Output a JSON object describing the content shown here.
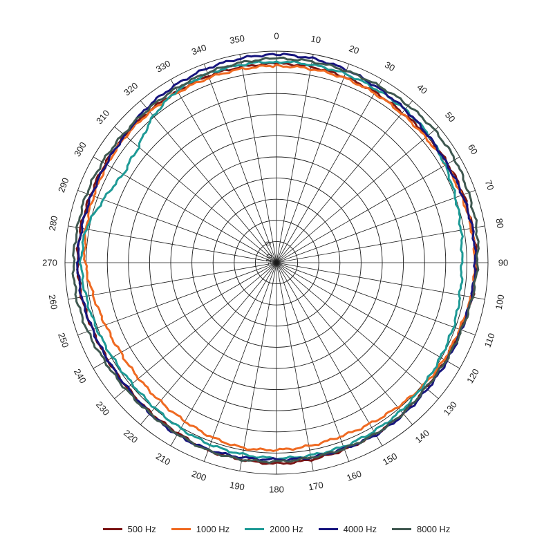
{
  "chart_data": {
    "type": "polar-line",
    "angle_unit": "degrees",
    "angle_direction": "clockwise",
    "zero_direction": "top",
    "angle_ticks": [
      0,
      10,
      20,
      30,
      40,
      50,
      60,
      70,
      80,
      90,
      100,
      110,
      120,
      130,
      140,
      150,
      160,
      170,
      180,
      190,
      200,
      210,
      220,
      230,
      240,
      250,
      260,
      270,
      280,
      290,
      300,
      310,
      320,
      330,
      340,
      350
    ],
    "radial_axis": {
      "unit": "dB",
      "min": -10,
      "max": 10,
      "rings": 10,
      "tick_labels": [
        "0",
        "-10"
      ]
    },
    "legend_position": "bottom",
    "series": [
      {
        "name": "500 Hz",
        "color": "#7a1414",
        "angles": [
          0,
          10,
          20,
          30,
          40,
          50,
          60,
          70,
          80,
          90,
          100,
          110,
          120,
          130,
          140,
          150,
          160,
          170,
          180,
          190,
          200,
          210,
          220,
          230,
          240,
          250,
          260,
          270,
          280,
          290,
          300,
          310,
          320,
          330,
          340,
          350
        ],
        "values": [
          8.8,
          8.8,
          8.7,
          8.6,
          8.5,
          8.6,
          8.7,
          8.8,
          8.8,
          8.9,
          8.8,
          8.5,
          8.4,
          8.4,
          8.6,
          8.7,
          8.8,
          8.9,
          9.0,
          8.9,
          8.9,
          8.6,
          8.5,
          8.4,
          8.4,
          8.5,
          8.7,
          8.8,
          8.8,
          8.7,
          8.7,
          8.7,
          8.7,
          8.7,
          8.8,
          8.8
        ]
      },
      {
        "name": "1000 Hz",
        "color": "#ef6a22",
        "angles": [
          0,
          10,
          20,
          30,
          40,
          50,
          60,
          70,
          80,
          90,
          100,
          110,
          120,
          130,
          140,
          150,
          160,
          170,
          180,
          190,
          200,
          210,
          220,
          230,
          240,
          250,
          260,
          270,
          280,
          290,
          300,
          310,
          320,
          330,
          340,
          350
        ],
        "values": [
          8.6,
          8.6,
          8.6,
          8.5,
          8.4,
          8.4,
          8.5,
          8.6,
          8.7,
          8.8,
          8.7,
          8.4,
          8.3,
          8.1,
          7.8,
          7.6,
          7.5,
          7.6,
          7.7,
          7.8,
          7.6,
          7.3,
          7.1,
          7.0,
          7.0,
          7.2,
          7.6,
          8.1,
          8.3,
          8.4,
          8.5,
          8.6,
          8.6,
          8.6,
          8.6,
          8.6
        ]
      },
      {
        "name": "2000 Hz",
        "color": "#1e9a96",
        "angles": [
          0,
          10,
          20,
          30,
          40,
          50,
          60,
          70,
          80,
          90,
          100,
          110,
          120,
          130,
          140,
          150,
          160,
          170,
          180,
          190,
          200,
          210,
          220,
          230,
          240,
          250,
          260,
          270,
          280,
          290,
          300,
          310,
          320,
          330,
          340,
          350
        ],
        "values": [
          9.0,
          9.0,
          9.0,
          8.9,
          8.9,
          8.8,
          8.4,
          8.0,
          7.7,
          7.5,
          7.6,
          7.8,
          7.9,
          8.1,
          8.3,
          8.4,
          8.5,
          8.5,
          8.5,
          8.4,
          8.3,
          8.1,
          7.9,
          7.8,
          7.9,
          8.1,
          8.3,
          8.5,
          8.3,
          7.4,
          6.7,
          7.0,
          8.1,
          8.8,
          9.0,
          9.0
        ]
      },
      {
        "name": "4000 Hz",
        "color": "#17157e",
        "angles": [
          0,
          10,
          20,
          30,
          40,
          50,
          60,
          70,
          80,
          90,
          100,
          110,
          120,
          130,
          140,
          150,
          160,
          170,
          180,
          190,
          200,
          210,
          220,
          230,
          240,
          250,
          260,
          270,
          280,
          290,
          300,
          310,
          320,
          330,
          340,
          350
        ],
        "values": [
          9.7,
          9.6,
          9.4,
          9.1,
          8.9,
          8.7,
          8.6,
          8.7,
          8.8,
          8.8,
          8.7,
          8.6,
          8.6,
          8.6,
          8.7,
          8.8,
          8.7,
          8.7,
          8.6,
          8.7,
          8.8,
          8.8,
          8.6,
          8.4,
          8.4,
          8.5,
          8.7,
          8.8,
          8.7,
          8.6,
          8.6,
          8.7,
          9.1,
          9.3,
          9.5,
          9.6
        ]
      },
      {
        "name": "8000 Hz",
        "color": "#3f5850",
        "angles": [
          0,
          10,
          20,
          30,
          40,
          50,
          60,
          70,
          80,
          90,
          100,
          110,
          120,
          130,
          140,
          150,
          160,
          170,
          180,
          190,
          200,
          210,
          220,
          230,
          240,
          250,
          260,
          270,
          280,
          290,
          300,
          310,
          320,
          330,
          340,
          350
        ],
        "values": [
          9.3,
          9.3,
          9.3,
          9.3,
          9.4,
          9.5,
          9.5,
          9.3,
          9.2,
          9.0,
          8.8,
          8.6,
          8.5,
          8.4,
          8.6,
          8.7,
          8.7,
          8.7,
          8.8,
          8.9,
          8.9,
          8.7,
          8.6,
          8.6,
          8.7,
          9.0,
          9.2,
          9.2,
          9.1,
          9.1,
          9.0,
          8.9,
          8.9,
          9.0,
          9.1,
          9.2
        ]
      }
    ]
  }
}
